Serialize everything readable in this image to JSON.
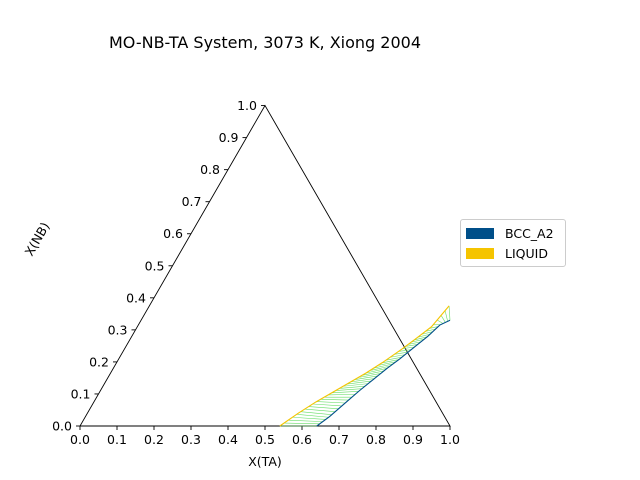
{
  "title": "MO-NB-TA System, 3073 K, Xiong 2004",
  "chart_data": {
    "type": "ternary",
    "title": "MO-NB-TA System, 3073 K, Xiong 2004",
    "xlabel": "X(TA)",
    "ylabel": "X(NB)",
    "xlim": [
      0,
      1
    ],
    "ylim": [
      0,
      1
    ],
    "x_ticks": [
      "0.0",
      "0.1",
      "0.2",
      "0.3",
      "0.4",
      "0.5",
      "0.6",
      "0.7",
      "0.8",
      "0.9",
      "1.0"
    ],
    "y_ticks": [
      "0.0",
      "0.1",
      "0.2",
      "0.3",
      "0.4",
      "0.5",
      "0.6",
      "0.7",
      "0.8",
      "0.9",
      "1.0"
    ],
    "legend": {
      "placement": "right"
    },
    "series": [
      {
        "name": "BCC_A2",
        "color": "#004f89",
        "points": [
          {
            "x_ta": 0.64,
            "x_nb": 0.0
          },
          {
            "x_ta": 0.66,
            "x_nb": 0.03
          },
          {
            "x_ta": 0.68,
            "x_nb": 0.07
          },
          {
            "x_ta": 0.7,
            "x_nb": 0.11
          },
          {
            "x_ta": 0.72,
            "x_nb": 0.145
          },
          {
            "x_ta": 0.74,
            "x_nb": 0.18
          },
          {
            "x_ta": 0.76,
            "x_nb": 0.21
          },
          {
            "x_ta": 0.78,
            "x_nb": 0.245
          },
          {
            "x_ta": 0.8,
            "x_nb": 0.28
          },
          {
            "x_ta": 0.815,
            "x_nb": 0.315
          },
          {
            "x_ta": 0.835,
            "x_nb": 0.33
          }
        ]
      },
      {
        "name": "LIQUID",
        "color": "#f5c400",
        "points": [
          {
            "x_ta": 0.54,
            "x_nb": 0.0
          },
          {
            "x_ta": 0.57,
            "x_nb": 0.04
          },
          {
            "x_ta": 0.6,
            "x_nb": 0.075
          },
          {
            "x_ta": 0.63,
            "x_nb": 0.105
          },
          {
            "x_ta": 0.66,
            "x_nb": 0.135
          },
          {
            "x_ta": 0.69,
            "x_nb": 0.165
          },
          {
            "x_ta": 0.72,
            "x_nb": 0.2
          },
          {
            "x_ta": 0.75,
            "x_nb": 0.24
          },
          {
            "x_ta": 0.77,
            "x_nb": 0.27
          },
          {
            "x_ta": 0.795,
            "x_nb": 0.31
          },
          {
            "x_ta": 0.81,
            "x_nb": 0.375
          }
        ]
      }
    ],
    "tie_line_color": "#66dd66"
  }
}
